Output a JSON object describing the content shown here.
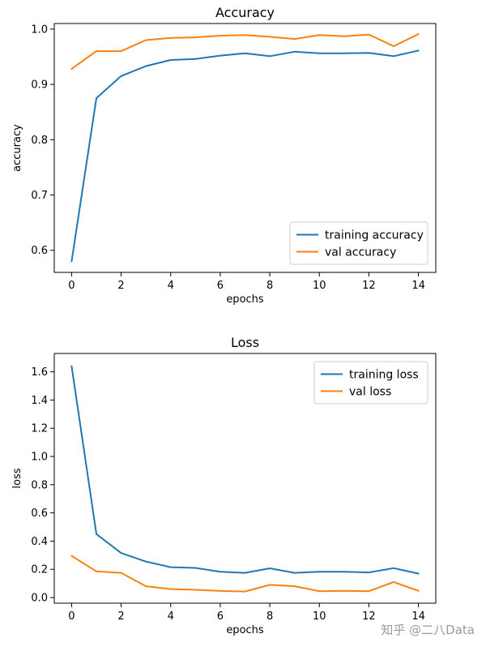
{
  "colors": {
    "series1": "#1f77b4",
    "series2": "#ff7f0e"
  },
  "watermark": "知乎 @二八Data",
  "chart_data": [
    {
      "type": "line",
      "title": "Accuracy",
      "xlabel": "epochs",
      "ylabel": "accuracy",
      "x": [
        0,
        1,
        2,
        3,
        4,
        5,
        6,
        7,
        8,
        9,
        10,
        11,
        12,
        13,
        14
      ],
      "xticks": [
        "0",
        "2",
        "4",
        "6",
        "8",
        "10",
        "12",
        "14"
      ],
      "yticks": [
        "0.6",
        "0.7",
        "0.8",
        "0.9",
        "1.0"
      ],
      "xlim": [
        -0.7,
        14.7
      ],
      "ylim": [
        0.56,
        1.01
      ],
      "legend_position": "lower-right",
      "series": [
        {
          "name": "training accuracy",
          "color": "#1f77b4",
          "values": [
            0.58,
            0.875,
            0.915,
            0.933,
            0.944,
            0.946,
            0.952,
            0.956,
            0.951,
            0.959,
            0.956,
            0.956,
            0.957,
            0.951,
            0.961
          ]
        },
        {
          "name": "val accuracy",
          "color": "#ff7f0e",
          "values": [
            0.928,
            0.96,
            0.96,
            0.98,
            0.984,
            0.985,
            0.988,
            0.989,
            0.986,
            0.982,
            0.989,
            0.987,
            0.99,
            0.969,
            0.991
          ]
        }
      ]
    },
    {
      "type": "line",
      "title": "Loss",
      "xlabel": "epochs",
      "ylabel": "loss",
      "x": [
        0,
        1,
        2,
        3,
        4,
        5,
        6,
        7,
        8,
        9,
        10,
        11,
        12,
        13,
        14
      ],
      "xticks": [
        "0",
        "2",
        "4",
        "6",
        "8",
        "10",
        "12",
        "14"
      ],
      "yticks": [
        "0.0",
        "0.2",
        "0.4",
        "0.6",
        "0.8",
        "1.0",
        "1.2",
        "1.4",
        "1.6"
      ],
      "xlim": [
        -0.7,
        14.7
      ],
      "ylim": [
        -0.04,
        1.73
      ],
      "legend_position": "upper-right",
      "series": [
        {
          "name": "training loss",
          "color": "#1f77b4",
          "values": [
            1.64,
            0.45,
            0.315,
            0.255,
            0.215,
            0.21,
            0.183,
            0.175,
            0.207,
            0.175,
            0.183,
            0.183,
            0.178,
            0.208,
            0.17
          ]
        },
        {
          "name": "val loss",
          "color": "#ff7f0e",
          "values": [
            0.295,
            0.185,
            0.175,
            0.08,
            0.06,
            0.055,
            0.047,
            0.043,
            0.09,
            0.08,
            0.045,
            0.048,
            0.045,
            0.11,
            0.048
          ]
        }
      ]
    }
  ]
}
